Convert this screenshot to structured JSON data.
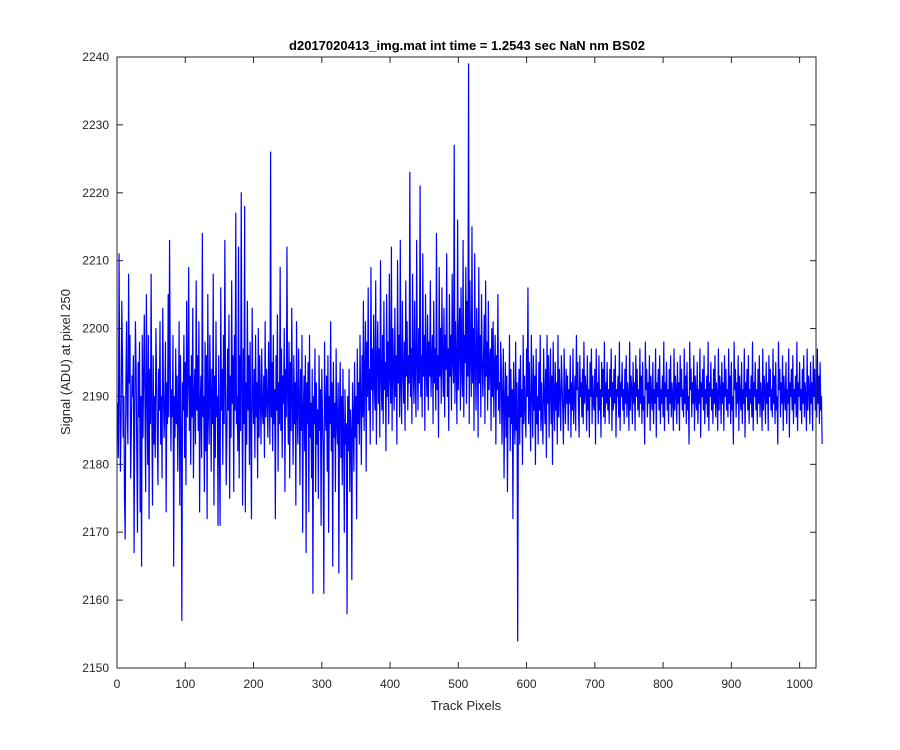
{
  "chart_data": {
    "type": "line",
    "title": "d2017020413_img.mat int time = 1.2543 sec  NaN nm BS02",
    "xlabel": "Track Pixels",
    "ylabel": "Signal (ADU) at pixel 250",
    "xlim": [
      0,
      1024
    ],
    "ylim": [
      2150,
      2240
    ],
    "x_ticks": [
      0,
      100,
      200,
      300,
      400,
      500,
      600,
      700,
      800,
      900,
      1000
    ],
    "y_ticks": [
      2150,
      2160,
      2170,
      2180,
      2190,
      2200,
      2210,
      2220,
      2230,
      2240
    ],
    "grid": false,
    "series": [
      {
        "color": "#0000ff",
        "x_start": 1,
        "x_step": 1,
        "values": [
          2189,
          2181,
          2211,
          2191,
          2179,
          2187,
          2204,
          2196,
          2184,
          2190,
          2175,
          2169,
          2192,
          2201,
          2187,
          2183,
          2208,
          2192,
          2199,
          2178,
          2185,
          2193,
          2190,
          2196,
          2167,
          2188,
          2201,
          2194,
          2182,
          2170,
          2195,
          2187,
          2198,
          2173,
          2190,
          2165,
          2199,
          2184,
          2193,
          2202,
          2188,
          2176,
          2205,
          2191,
          2180,
          2199,
          2172,
          2194,
          2186,
          2208,
          2187,
          2174,
          2196,
          2183,
          2190,
          2181,
          2200,
          2193,
          2185,
          2177,
          2194,
          2188,
          2201,
          2183,
          2190,
          2178,
          2203,
          2191,
          2184,
          2189,
          2198,
          2173,
          2192,
          2186,
          2205,
          2187,
          2213,
          2195,
          2182,
          2191,
          2187,
          2199,
          2165,
          2190,
          2184,
          2197,
          2186,
          2193,
          2179,
          2188,
          2201,
          2174,
          2196,
          2185,
          2157,
          2192,
          2188,
          2199,
          2181,
          2195,
          2177,
          2204,
          2187,
          2192,
          2209,
          2185,
          2193,
          2180,
          2196,
          2187,
          2203,
          2178,
          2190,
          2194,
          2183,
          2207,
          2188,
          2196,
          2185,
          2201,
          2173,
          2189,
          2193,
          2181,
          2214,
          2187,
          2190,
          2176,
          2198,
          2182,
          2196,
          2172,
          2205,
          2188,
          2183,
          2199,
          2191,
          2179,
          2194,
          2186,
          2208,
          2174,
          2193,
          2181,
          2201,
          2187,
          2190,
          2171,
          2196,
          2183,
          2171,
          2206,
          2188,
          2194,
          2180,
          2199,
          2186,
          2213,
          2191,
          2177,
          2185,
          2197,
          2188,
          2202,
          2175,
          2193,
          2184,
          2207,
          2189,
          2196,
          2176,
          2199,
          2188,
          2217,
          2186,
          2190,
          2182,
          2212,
          2178,
          2196,
          2185,
          2220,
          2191,
          2174,
          2197,
          2186,
          2218,
          2173,
          2192,
          2183,
          2204,
          2188,
          2196,
          2180,
          2198,
          2185,
          2172,
          2203,
          2190,
          2186,
          2194,
          2181,
          2199,
          2187,
          2192,
          2178,
          2200,
          2184,
          2196,
          2190,
          2183,
          2197,
          2188,
          2186,
          2193,
          2181,
          2201,
          2187,
          2194,
          2189,
          2184,
          2198,
          2190,
          2183,
          2226,
          2187,
          2195,
          2182,
          2199,
          2186,
          2191,
          2172,
          2196,
          2188,
          2202,
          2179,
          2192,
          2186,
          2209,
          2185,
          2197,
          2181,
          2193,
          2189,
          2200,
          2176,
          2194,
          2187,
          2212,
          2190,
          2183,
          2198,
          2178,
          2195,
          2185,
          2203,
          2189,
          2180,
          2196,
          2186,
          2192,
          2174,
          2201,
          2188,
          2183,
          2197,
          2190,
          2177,
          2194,
          2185,
          2199,
          2170,
          2188,
          2193,
          2182,
          2196,
          2167,
          2192,
          2186,
          2195,
          2173,
          2199,
          2184,
          2189,
          2178,
          2194,
          2161,
          2190,
          2186,
          2197,
          2176,
          2192,
          2183,
          2188,
          2175,
          2196,
          2185,
          2191,
          2171,
          2194,
          2187,
          2182,
          2161,
          2198,
          2188,
          2185,
          2193,
          2179,
          2196,
          2170,
          2190,
          2186,
          2201,
          2182,
          2192,
          2165,
          2195,
          2184,
          2189,
          2176,
          2197,
          2186,
          2183,
          2192,
          2164,
          2188,
          2195,
          2181,
          2190,
          2177,
          2194,
          2185,
          2170,
          2191,
          2183,
          2186,
          2158,
          2190,
          2182,
          2194,
          2176,
          2188,
          2185,
          2163,
          2192,
          2187,
          2179,
          2195,
          2184,
          2190,
          2172,
          2197,
          2186,
          2192,
          2183,
          2199,
          2189,
          2180,
          2196,
          2187,
          2204,
          2185,
          2193,
          2201,
          2179,
          2198,
          2190,
          2206,
          2188,
          2194,
          2183,
          2209,
          2191,
          2197,
          2185,
          2202,
          2192,
          2188,
          2207,
          2183,
          2195,
          2201,
          2189,
          2197,
          2184,
          2210,
          2193,
          2188,
          2199,
          2186,
          2204,
          2191,
          2195,
          2182,
          2205,
          2190,
          2198,
          2186,
          2208,
          2193,
          2189,
          2212,
          2185,
          2200,
          2194,
          2188,
          2203,
          2190,
          2196,
          2183,
          2210,
          2192,
          2199,
          2187,
          2213,
          2191,
          2186,
          2204,
          2194,
          2189,
          2198,
          2185,
          2207,
          2193,
          2201,
          2188,
          2196,
          2192,
          2223,
          2190,
          2197,
          2186,
          2208,
          2194,
          2189,
          2204,
          2192,
          2187,
          2213,
          2195,
          2188,
          2200,
          2192,
          2221,
          2190,
          2196,
          2187,
          2211,
          2193,
          2199,
          2185,
          2205,
          2194,
          2190,
          2202,
          2188,
          2198,
          2193,
          2207,
          2190,
          2195,
          2199,
          2186,
          2204,
          2192,
          2197,
          2188,
          2214,
          2191,
          2196,
          2184,
          2209,
          2193,
          2200,
          2189,
          2206,
          2195,
          2190,
          2203,
          2187,
          2199,
          2194,
          2211,
          2190,
          2197,
          2185,
          2205,
          2193,
          2199,
          2188,
          2208,
          2195,
          2192,
          2227,
          2189,
          2201,
          2194,
          2186,
          2216,
          2191,
          2198,
          2203,
          2188,
          2206,
          2194,
          2190,
          2213,
          2187,
          2199,
          2195,
          2209,
          2189,
          2204,
          2193,
          2239,
          2186,
          2207,
          2196,
          2190,
          2215,
          2192,
          2200,
          2185,
          2211,
          2194,
          2188,
          2203,
          2197,
          2184,
          2209,
          2192,
          2199,
          2187,
          2205,
          2195,
          2190,
          2196,
          2202,
          2186,
          2207,
          2193,
          2198,
          2188,
          2204,
          2191,
          2195,
          2197,
          2185,
          2200,
          2190,
          2201,
          2187,
          2194,
          2199,
          2183,
          2196,
          2191,
          2205,
          2188,
          2192,
          2186,
          2198,
          2194,
          2183,
          2190,
          2197,
          2178,
          2189,
          2195,
          2184,
          2193,
          2176,
          2190,
          2187,
          2199,
          2182,
          2194,
          2186,
          2191,
          2172,
          2195,
          2188,
          2183,
          2198,
          2185,
          2192,
          2154,
          2189,
          2194,
          2183,
          2196,
          2187,
          2191,
          2180,
          2199,
          2186,
          2193,
          2188,
          2184,
          2197,
          2190,
          2206,
          2186,
          2195,
          2188,
          2182,
          2199,
          2191,
          2184,
          2196,
          2188,
          2193,
          2180,
          2197,
          2186,
          2190,
          2183,
          2195,
          2188,
          2199,
          2185,
          2192,
          2187,
          2183,
          2197,
          2190,
          2186,
          2194,
          2181,
          2199,
          2189,
          2196,
          2184,
          2191,
          2197,
          2186,
          2193,
          2180,
          2198,
          2190,
          2185,
          2195,
          2188,
          2192,
          2183,
          2199,
          2187,
          2194,
          2190,
          2185,
          2196,
          2192,
          2188,
          2183,
          2197,
          2190,
          2186,
          2194,
          2189,
          2193,
          2185,
          2191,
          2189,
          2196,
          2184,
          2192,
          2188,
          2197,
          2186,
          2190,
          2193,
          2185,
          2199,
          2191,
          2195,
          2188,
          2184,
          2196,
          2190,
          2192,
          2187,
          2194,
          2186,
          2198,
          2189,
          2193,
          2191,
          2185,
          2196,
          2188,
          2191,
          2184,
          2195,
          2190,
          2197,
          2186,
          2193,
          2189,
          2188,
          2194,
          2183,
          2197,
          2190,
          2192,
          2186,
          2196,
          2188,
          2191,
          2184,
          2195,
          2190,
          2194,
          2187,
          2198,
          2186,
          2192,
          2189,
          2195,
          2188,
          2191,
          2186,
          2194,
          2190,
          2197,
          2185,
          2192,
          2188,
          2194,
          2189,
          2196,
          2184,
          2191,
          2190,
          2193,
          2187,
          2198,
          2185,
          2192,
          2190,
          2195,
          2188,
          2191,
          2186,
          2194,
          2189,
          2196,
          2187,
          2192,
          2190,
          2185,
          2198,
          2188,
          2193,
          2191,
          2186,
          2195,
          2189,
          2192,
          2185,
          2196,
          2190,
          2194,
          2188,
          2191,
          2187,
          2197,
          2189,
          2193,
          2186,
          2195,
          2188,
          2190,
          2183,
          2198,
          2191,
          2194,
          2187,
          2192,
          2189,
          2196,
          2185,
          2193,
          2190,
          2188,
          2195,
          2186,
          2191,
          2189,
          2197,
          2184,
          2192,
          2190,
          2194,
          2188,
          2196,
          2186,
          2191,
          2189,
          2193,
          2187,
          2198,
          2185,
          2192,
          2190,
          2195,
          2188,
          2191,
          2186,
          2194,
          2189,
          2196,
          2187,
          2192,
          2190,
          2185,
          2197,
          2188,
          2193,
          2191,
          2186,
          2195,
          2189,
          2192,
          2185,
          2196,
          2190,
          2194,
          2188,
          2191,
          2187,
          2197,
          2189,
          2193,
          2186,
          2195,
          2188,
          2190,
          2183,
          2198,
          2191,
          2194,
          2187,
          2192,
          2189,
          2196,
          2185,
          2193,
          2190,
          2188,
          2195,
          2186,
          2191,
          2189,
          2197,
          2184,
          2192,
          2190,
          2194,
          2188,
          2196,
          2186,
          2191,
          2189,
          2193,
          2187,
          2198,
          2185,
          2192,
          2190,
          2195,
          2188,
          2191,
          2186,
          2194,
          2189,
          2196,
          2187,
          2192,
          2190,
          2185,
          2197,
          2188,
          2193,
          2191,
          2186,
          2195,
          2189,
          2192,
          2185,
          2196,
          2190,
          2194,
          2188,
          2191,
          2187,
          2197,
          2189,
          2193,
          2186,
          2195,
          2188,
          2190,
          2183,
          2198,
          2191,
          2194,
          2187,
          2192,
          2189,
          2196,
          2185,
          2193,
          2190,
          2188,
          2195,
          2186,
          2191,
          2189,
          2197,
          2184,
          2192,
          2190,
          2194,
          2188,
          2196,
          2186,
          2191,
          2189,
          2193,
          2187,
          2198,
          2185,
          2192,
          2190,
          2195,
          2188,
          2191,
          2186,
          2194,
          2189,
          2196,
          2187,
          2192,
          2190,
          2185,
          2197,
          2188,
          2193,
          2191,
          2186,
          2195,
          2189,
          2192,
          2185,
          2196,
          2190,
          2194,
          2188,
          2191,
          2187,
          2197,
          2189,
          2193,
          2186,
          2195,
          2188,
          2190,
          2183,
          2198,
          2191,
          2194,
          2187,
          2192,
          2189,
          2196,
          2185,
          2193,
          2190,
          2188,
          2195,
          2186,
          2191,
          2189,
          2197,
          2184,
          2192,
          2190,
          2194,
          2188,
          2196,
          2186,
          2191,
          2189,
          2193,
          2187,
          2198,
          2185,
          2192,
          2190,
          2195,
          2188,
          2191,
          2186,
          2194,
          2189,
          2196,
          2187,
          2192,
          2190,
          2185,
          2197,
          2188,
          2193,
          2191,
          2186,
          2195,
          2189,
          2192,
          2185,
          2196,
          2190,
          2194,
          2188,
          2191,
          2187,
          2197,
          2189,
          2193,
          2186,
          2195,
          2188,
          2190,
          2183
        ]
      }
    ]
  }
}
